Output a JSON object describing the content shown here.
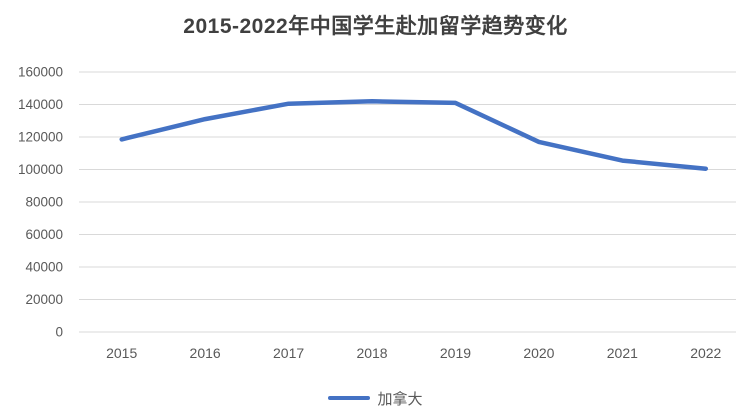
{
  "chart_data": {
    "type": "line",
    "title": "2015-2022年中国学生赴加留学趋势变化",
    "categories": [
      "2015",
      "2016",
      "2017",
      "2018",
      "2019",
      "2020",
      "2021",
      "2022"
    ],
    "series": [
      {
        "name": "加拿大",
        "color": "#4472C4",
        "values": [
          118500,
          131000,
          140500,
          142000,
          141000,
          117000,
          105500,
          100500
        ]
      }
    ],
    "ylim": [
      0,
      160000
    ],
    "ytick_step": 20000,
    "ytick_labels": [
      "0",
      "20000",
      "40000",
      "60000",
      "80000",
      "100000",
      "120000",
      "140000",
      "160000"
    ],
    "xlabel": "",
    "ylabel": "",
    "grid": "horizontal-only",
    "legend_position": "bottom",
    "legend_entries": [
      "加拿大"
    ]
  },
  "colors": {
    "line": "#4472C4",
    "gridline": "#D9D9D9",
    "axis_label": "#595959",
    "title": "#404040",
    "legend_label": "#595959",
    "background": "#FFFFFF"
  }
}
